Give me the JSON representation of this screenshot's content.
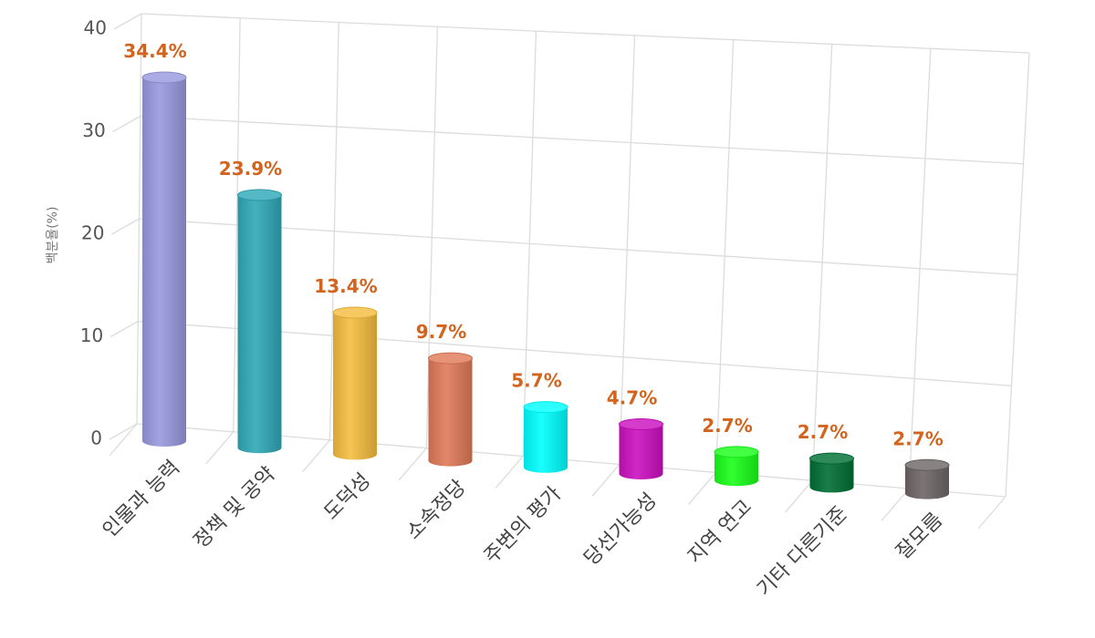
{
  "chart_data": {
    "type": "bar",
    "ylabel": "백분율(%)",
    "ylim": [
      0,
      40
    ],
    "yticks": [
      0,
      10,
      20,
      30,
      40
    ],
    "grid": true,
    "categories": [
      "인물과 능력",
      "정책 및 공약",
      "도덕성",
      "소속정당",
      "주변의 평가",
      "당선가능성",
      "지역 연고",
      "기타 다른기준",
      "잘모름"
    ],
    "values": [
      34.4,
      23.9,
      13.4,
      9.7,
      5.7,
      4.7,
      2.7,
      2.7,
      2.7
    ],
    "labels": [
      "34.4%",
      "23.9%",
      "13.4%",
      "9.7%",
      "5.7%",
      "4.7%",
      "2.7%",
      "2.7%",
      "2.7%"
    ],
    "colors": [
      "#9999e0",
      "#30a8b8",
      "#f5bd40",
      "#e07a58",
      "#00ffff",
      "#cc10c0",
      "#1aff1a",
      "#006f35",
      "#6e6666"
    ]
  }
}
